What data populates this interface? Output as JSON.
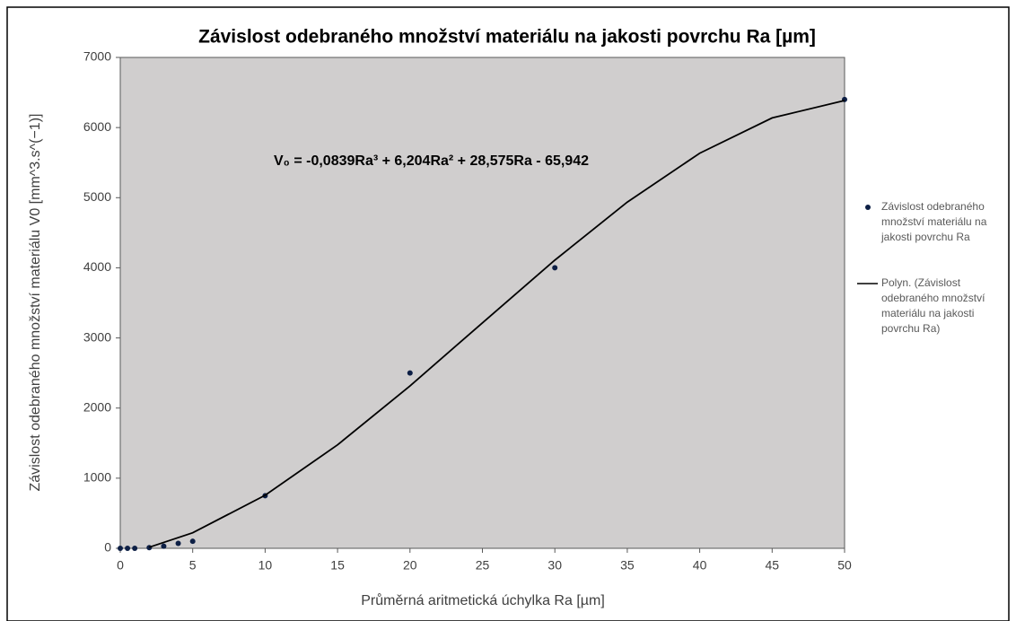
{
  "chart_data": {
    "type": "scatter",
    "title": "Závislost odebraného množství materiálu na jakosti povrchu Ra [µm]",
    "x_label": "Průměrná aritmetická úchylka Ra [µm]",
    "y_label": "Závislost odebraného množství materiálu V0 [mm^3.s^(−1)]",
    "annotation": "V₀ = -0,0839Ra³ + 6,204Ra² + 28,575Ra - 65,942",
    "xlim": [
      0,
      50
    ],
    "xticks": [
      0,
      5,
      10,
      15,
      20,
      25,
      30,
      35,
      40,
      45,
      50
    ],
    "ylim": [
      0,
      7000
    ],
    "yticks": [
      0,
      1000,
      2000,
      3000,
      4000,
      5000,
      6000,
      7000
    ],
    "grid": false,
    "legend": "right",
    "series": [
      {
        "name": "Závislost odebraného množství materiálu na jakosti povrchu Ra",
        "color": "#0d1f45",
        "kind": "points",
        "x": [
          0,
          0.5,
          1,
          2,
          3,
          4,
          5,
          10,
          20,
          30,
          50
        ],
        "values": [
          0,
          0,
          0,
          10,
          30,
          70,
          100,
          750,
          2500,
          4000,
          6400
        ]
      },
      {
        "name": "Polyn. (Závislost odebraného množství materiálu na jakosti povrchu Ra)",
        "color": "#000000",
        "kind": "line",
        "x": [
          2,
          5,
          10,
          15,
          20,
          25,
          30,
          35,
          40,
          45,
          50
        ],
        "values": [
          15.4,
          221.5,
          756.3,
          1475.4,
          2316,
          3215,
          4109.6,
          4936.9,
          5633.9,
          6137.7,
          6385.3
        ]
      }
    ]
  }
}
